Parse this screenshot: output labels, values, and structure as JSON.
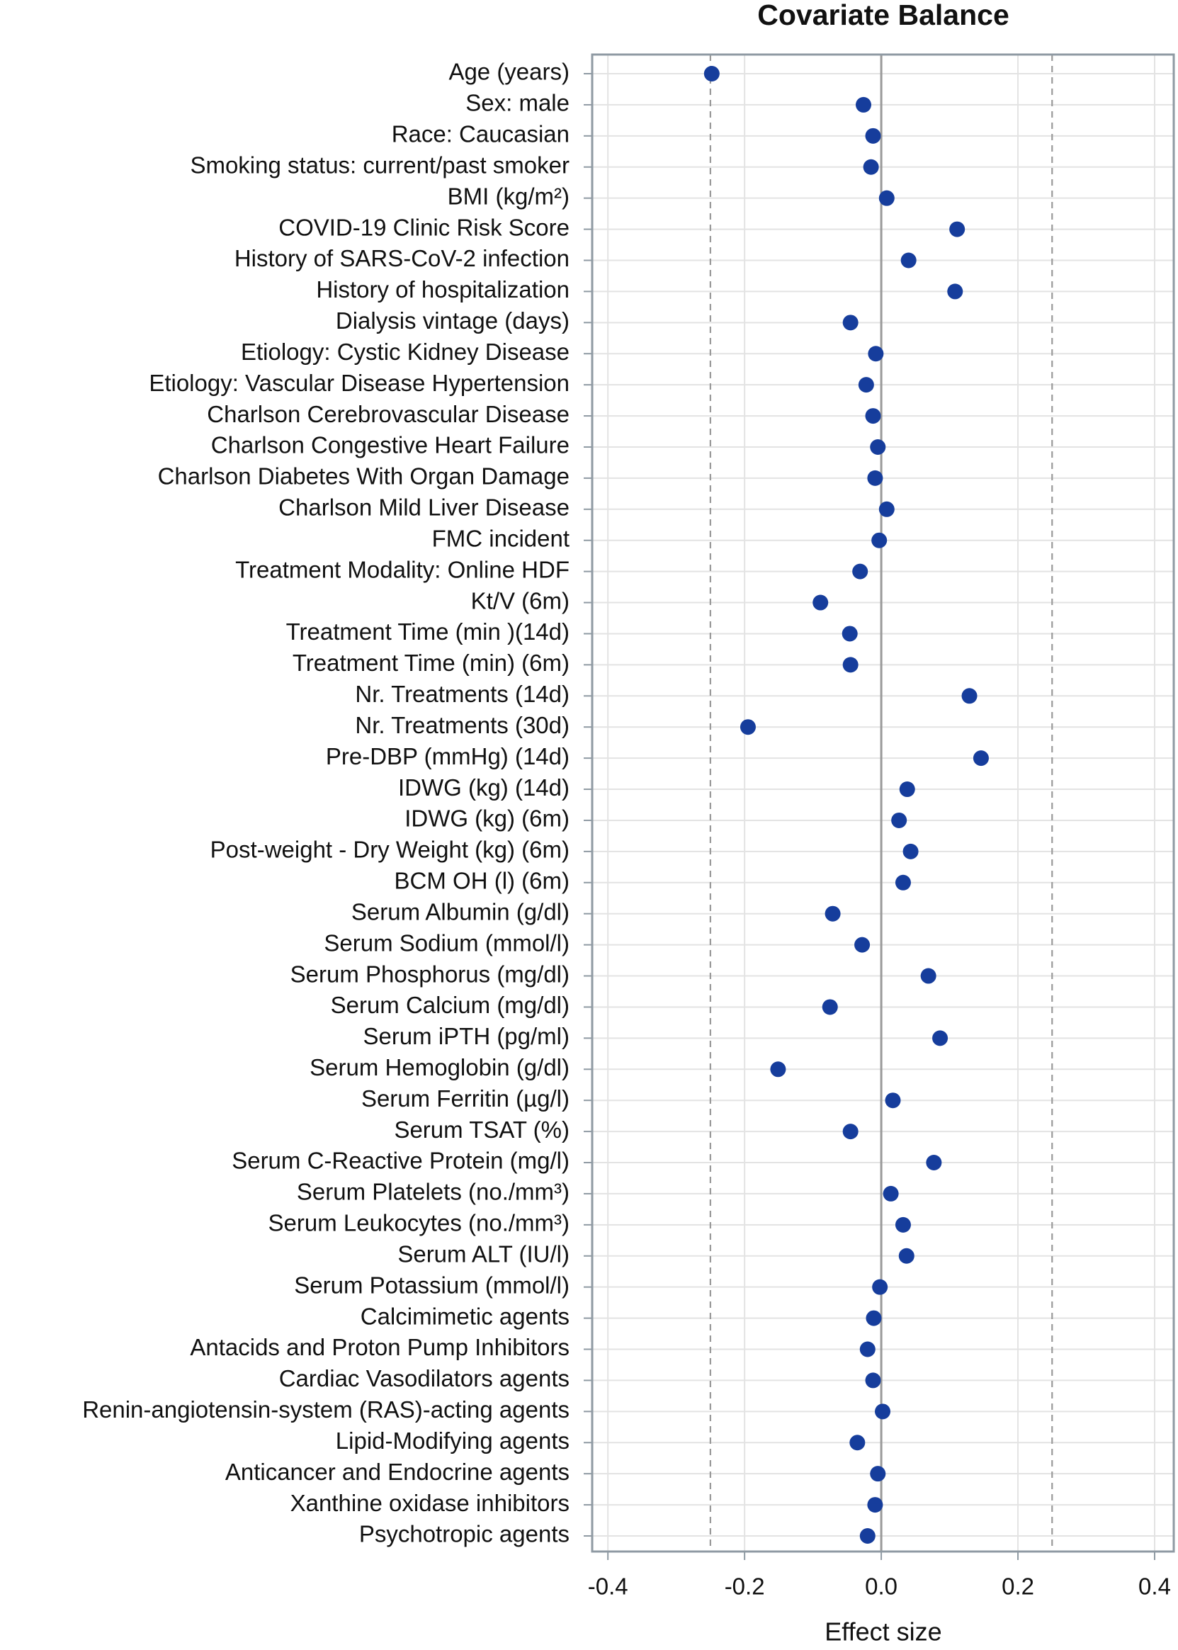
{
  "chart_data": {
    "type": "dot",
    "title": "Covariate Balance",
    "x_label": "Effect size",
    "categories": [
      "Age (years)",
      "Sex: male",
      "Race: Caucasian",
      "Smoking status: current/past smoker",
      "BMI (kg/m²)",
      "COVID-19 Clinic Risk Score",
      "History of SARS-CoV-2 infection",
      "History of hospitalization",
      "Dialysis vintage (days)",
      "Etiology: Cystic Kidney Disease",
      "Etiology: Vascular Disease Hypertension",
      "Charlson Cerebrovascular Disease",
      "Charlson Congestive Heart Failure",
      "Charlson Diabetes With Organ Damage",
      "Charlson Mild Liver Disease",
      "FMC incident",
      "Treatment Modality: Online HDF",
      "Kt/V (6m)",
      "Treatment Time (min )(14d)",
      "Treatment Time (min) (6m)",
      "Nr. Treatments (14d)",
      "Nr. Treatments (30d)",
      "Pre-DBP (mmHg) (14d)",
      "IDWG (kg) (14d)",
      "IDWG (kg) (6m)",
      "Post-weight - Dry Weight (kg) (6m)",
      "BCM OH (l) (6m)",
      "Serum Albumin (g/dl)",
      "Serum Sodium (mmol/l)",
      "Serum Phosphorus (mg/dl)",
      "Serum Calcium (mg/dl)",
      "Serum iPTH (pg/ml)",
      "Serum Hemoglobin (g/dl)",
      "Serum Ferritin (µg/l)",
      "Serum TSAT (%)",
      "Serum C-Reactive Protein (mg/l)",
      "Serum Platelets (no./mm³)",
      "Serum Leukocytes (no./mm³)",
      "Serum ALT (IU/l)",
      "Serum Potassium (mmol/l)",
      "Calcimimetic agents",
      "Antacids and Proton Pump Inhibitors",
      "Cardiac Vasodilators agents",
      "Renin-angiotensin-system (RAS)-acting agents",
      "Lipid-Modifying agents",
      "Anticancer and Endocrine agents",
      "Xanthine oxidase inhibitors",
      "Psychotropic agents"
    ],
    "values": [
      -0.248,
      -0.026,
      -0.012,
      -0.015,
      0.008,
      0.111,
      0.04,
      0.108,
      -0.045,
      -0.008,
      -0.022,
      -0.012,
      -0.005,
      -0.009,
      0.008,
      -0.003,
      -0.031,
      -0.089,
      -0.046,
      -0.045,
      0.129,
      -0.195,
      0.146,
      0.038,
      0.026,
      0.043,
      0.032,
      -0.071,
      -0.028,
      0.069,
      -0.075,
      0.086,
      -0.151,
      0.017,
      -0.045,
      0.077,
      0.014,
      0.032,
      0.037,
      -0.002,
      -0.011,
      -0.02,
      -0.012,
      0.002,
      -0.035,
      -0.005,
      -0.009,
      -0.02
    ],
    "color": "#163d9c",
    "xlim": [
      -0.423,
      0.428
    ],
    "xticks": [
      -0.4,
      -0.2,
      {
        "value": 0,
        "label": "0.0"
      },
      0.2,
      0.4
    ],
    "reference_lines": [
      -0.25,
      0.25
    ],
    "zero_line": 0,
    "grid": true
  }
}
